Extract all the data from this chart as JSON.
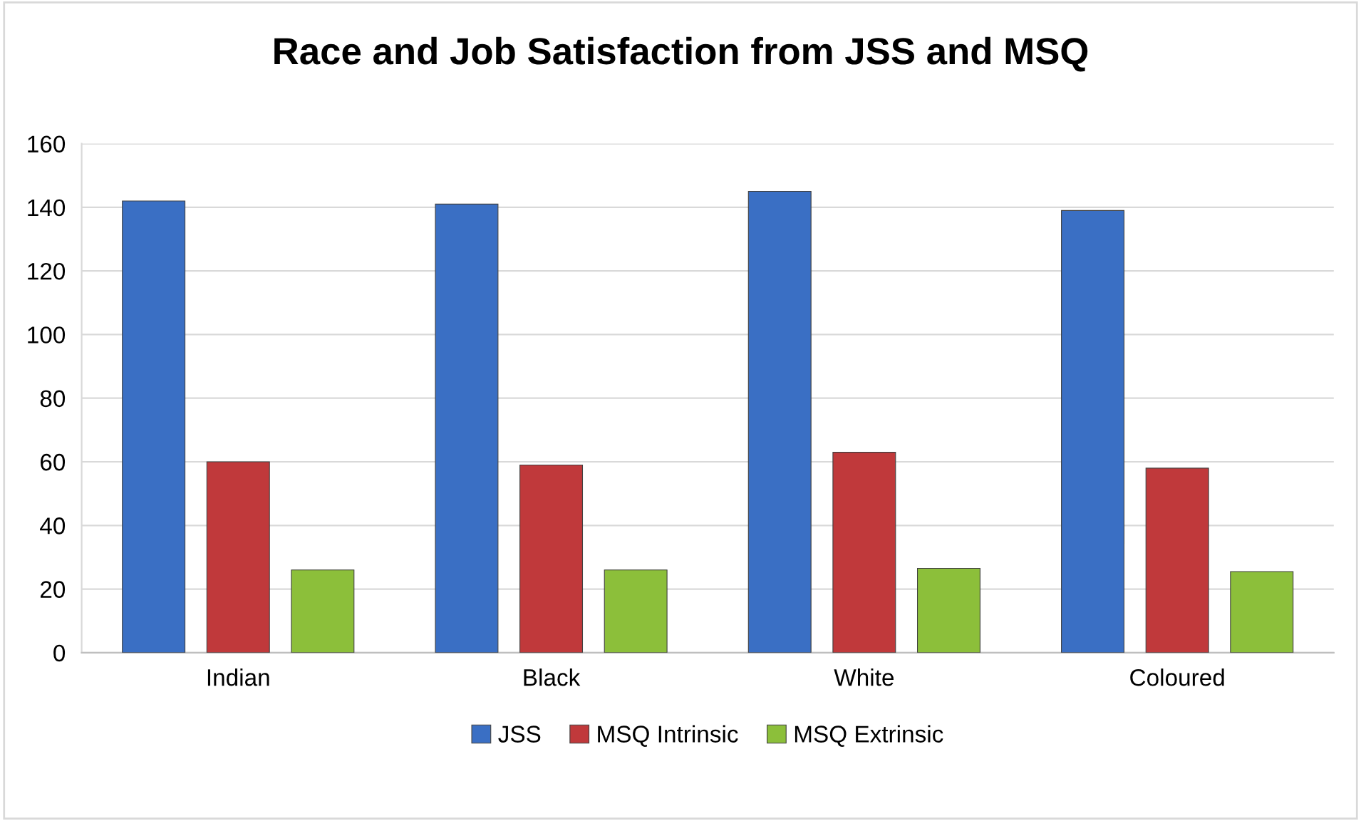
{
  "chart_data": {
    "type": "bar",
    "title": "Race and Job Satisfaction from JSS and MSQ",
    "categories": [
      "Indian",
      "Black",
      "White",
      "Coloured"
    ],
    "series": [
      {
        "name": "JSS",
        "color": "#3a6fc4",
        "values": [
          142,
          141,
          145,
          139
        ]
      },
      {
        "name": "MSQ Intrinsic",
        "color": "#c0393b",
        "values": [
          60,
          59,
          63,
          58
        ]
      },
      {
        "name": "MSQ Extrinsic",
        "color": "#8cbf3a",
        "values": [
          26,
          26,
          26.5,
          25.5
        ]
      }
    ],
    "ylim": [
      0,
      160
    ],
    "yticks": [
      0,
      20,
      40,
      60,
      80,
      100,
      120,
      140,
      160
    ],
    "grid": "y",
    "legend": "bottom"
  }
}
